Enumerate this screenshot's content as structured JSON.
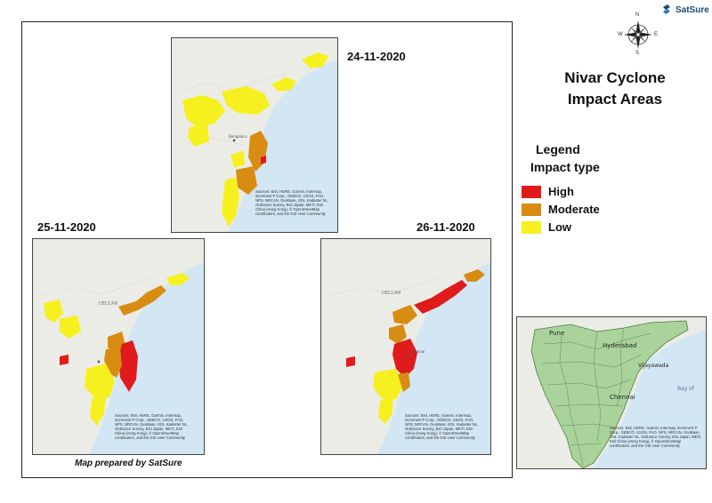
{
  "logo": {
    "text": "SatSure",
    "icon": "satsure-logo-icon"
  },
  "compass": {
    "n": "N",
    "s": "S",
    "e": "E",
    "w": "W"
  },
  "title": {
    "line1": "Nivar Cyclone",
    "line2": "Impact Areas"
  },
  "legend": {
    "title": "Legend",
    "subtitle": "Impact type",
    "items": [
      {
        "label": "High",
        "color": "#e01b1b"
      },
      {
        "label": "Moderate",
        "color": "#d98c12"
      },
      {
        "label": "Low",
        "color": "#f7f01f"
      }
    ]
  },
  "maps": {
    "m1": {
      "date": "24-11-2020"
    },
    "m2": {
      "date": "25-11-2020"
    },
    "m3": {
      "date": "26-11-2020"
    }
  },
  "map_labels": {
    "deccan": "DECCAN",
    "hyderabad": "Hyderabad",
    "bengaluru": "Bengaluru",
    "chennai": "Chennai",
    "pune": "Pune",
    "vijayawada": "Vijayawada",
    "bay_of": "Bay of"
  },
  "credits": {
    "esri": "Sources: Esri, HERE, Garmin, Intermap, increment P Corp., GEBCO, USGS, FAO, NPS, NRCAN, GeoBase, IGN, Kadaster NL, Ordnance Survey, Esri Japan, METI, Esri China (Hong Kong), © OpenStreetMap contributors, and the GIS User Community"
  },
  "prepared_by": "Map prepared by SatSure"
}
